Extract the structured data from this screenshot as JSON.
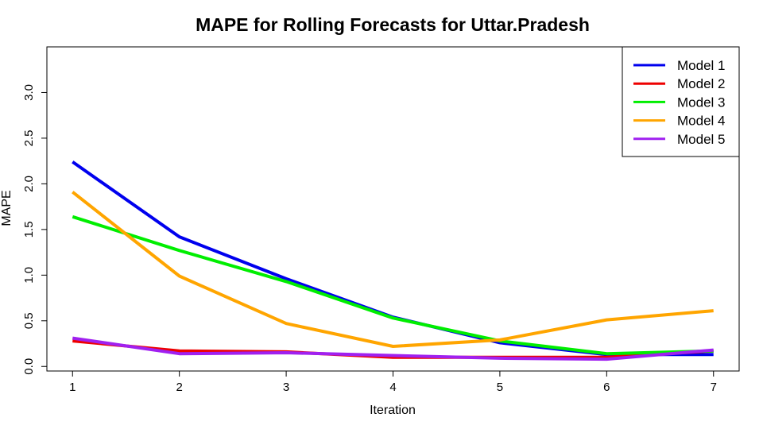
{
  "chart_data": {
    "type": "line",
    "title": "MAPE for Rolling Forecasts for Uttar.Pradesh",
    "xlabel": "Iteration",
    "ylabel": "MAPE",
    "x": [
      1,
      2,
      3,
      4,
      5,
      6,
      7
    ],
    "xlim": [
      0.76,
      7.24
    ],
    "ylim": [
      -0.05,
      3.5
    ],
    "xticks": [
      1,
      2,
      3,
      4,
      5,
      6,
      7
    ],
    "yticks": [
      0.0,
      0.5,
      1.0,
      1.5,
      2.0,
      2.5,
      3.0
    ],
    "ytick_labels": [
      "0.0",
      "0.5",
      "1.0",
      "1.5",
      "2.0",
      "2.5",
      "3.0"
    ],
    "legend_position": "top-right",
    "series": [
      {
        "name": "Model 1",
        "color": "#0000ee",
        "values": [
          2.24,
          1.42,
          0.96,
          0.54,
          0.26,
          0.13,
          0.13
        ]
      },
      {
        "name": "Model 2",
        "color": "#ee0000",
        "values": [
          0.28,
          0.17,
          0.16,
          0.1,
          0.1,
          0.1,
          0.17
        ]
      },
      {
        "name": "Model 3",
        "color": "#00ee00",
        "values": [
          1.64,
          1.27,
          0.93,
          0.53,
          0.28,
          0.14,
          0.17
        ]
      },
      {
        "name": "Model 4",
        "color": "#ffa500",
        "values": [
          1.91,
          0.99,
          0.47,
          0.22,
          0.29,
          0.51,
          0.61
        ]
      },
      {
        "name": "Model 5",
        "color": "#a020f0",
        "values": [
          0.31,
          0.14,
          0.15,
          0.12,
          0.09,
          0.08,
          0.18
        ]
      }
    ]
  }
}
